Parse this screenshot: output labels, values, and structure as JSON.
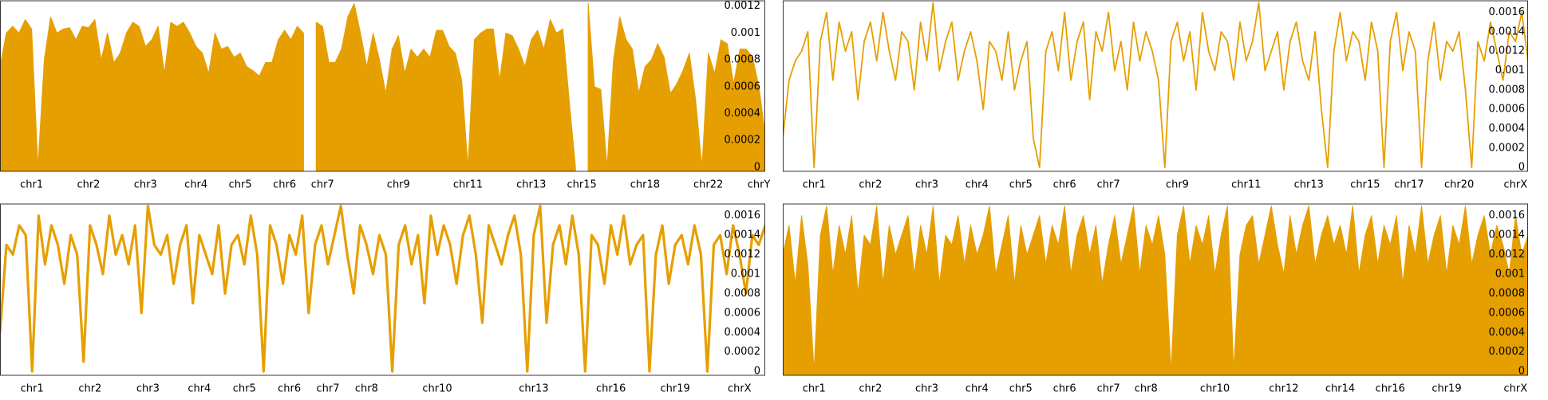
{
  "chart_data": [
    {
      "type": "area",
      "color": "#e69f00",
      "values": [
        0.00075,
        0.001,
        0.00105,
        0.001,
        0.0011,
        0.00103,
        0,
        0.0008,
        0.00112,
        0.001,
        0.00103,
        0.00104,
        0.00095,
        0.00105,
        0.00104,
        0.0011,
        0.0008,
        0.001,
        0.00078,
        0.00085,
        0.001,
        0.00108,
        0.00105,
        0.0009,
        0.00095,
        0.00105,
        0.0007,
        0.00108,
        0.00105,
        0.00108,
        0.001,
        0.0009,
        0.00085,
        0.0007,
        0.001,
        0.00088,
        0.0009,
        0.00082,
        0.00085,
        0.00075,
        0.00072,
        0.00068,
        0.00078,
        0.00078,
        0.00095,
        0.00102,
        0.00095,
        0.00105,
        0.001,
        null,
        0.00108,
        0.00105,
        0.00078,
        0.00078,
        0.00088,
        0.00112,
        0.00122,
        0.001,
        0.00075,
        0.001,
        0.0008,
        0.00055,
        0.00088,
        0.00098,
        0.0007,
        0.00088,
        0.00082,
        0.00088,
        0.00082,
        0.00102,
        0.00102,
        0.0009,
        0.00085,
        0.00065,
        0,
        0.00095,
        0.001,
        0.00103,
        0.00103,
        0.00065,
        0.001,
        0.00098,
        0.00088,
        0.00075,
        0.00095,
        0.00102,
        0.00088,
        0.0011,
        0.001,
        0.00103,
        0.0005,
        0,
        null,
        0.00122,
        0.0006,
        0.00058,
        0,
        0.0008,
        0.00112,
        0.00095,
        0.00088,
        0.00055,
        0.00075,
        0.0008,
        0.00092,
        0.00082,
        0.00055,
        0.00062,
        0.00072,
        0.00085,
        0.0005,
        0,
        0.00085,
        0.0007,
        0.00095,
        0.00092,
        0.00062,
        0.00088,
        0.00088,
        0.00082,
        0.0006,
        0.00025
      ],
      "xlim": [
        0,
        121
      ],
      "ylim": [
        -3e-05,
        0.00124
      ],
      "yticks": [
        0,
        0.0002,
        0.0004,
        0.0006,
        0.0008,
        0.001,
        0.0012
      ],
      "xticks": [
        {
          "value": 5,
          "label": "chr1"
        },
        {
          "value": 14,
          "label": "chr2"
        },
        {
          "value": 23,
          "label": "chr3"
        },
        {
          "value": 31,
          "label": "chr4"
        },
        {
          "value": 38,
          "label": "chr5"
        },
        {
          "value": 45,
          "label": "chr6"
        },
        {
          "value": 51,
          "label": "chr7"
        },
        {
          "value": 63,
          "label": "chr9"
        },
        {
          "value": 74,
          "label": "chr11"
        },
        {
          "value": 84,
          "label": "chr13"
        },
        {
          "value": 92,
          "label": "chr15"
        },
        {
          "value": 102,
          "label": "chr18"
        },
        {
          "value": 112,
          "label": "chr22"
        },
        {
          "value": 120,
          "label": "chrY"
        }
      ]
    },
    {
      "type": "line",
      "color": "#e69f00",
      "values": [
        0.0003,
        0.0009,
        0.0011,
        0.0012,
        0.0014,
        0,
        0.0013,
        0.0016,
        0.0009,
        0.0015,
        0.0012,
        0.0014,
        0.0007,
        0.0013,
        0.0015,
        0.0011,
        0.0016,
        0.0012,
        0.0009,
        0.0014,
        0.0013,
        0.0008,
        0.0015,
        0.0011,
        0.0017,
        0.001,
        0.0013,
        0.0015,
        0.0009,
        0.0012,
        0.0014,
        0.0011,
        0.0006,
        0.0013,
        0.0012,
        0.0009,
        0.0014,
        0.0008,
        0.0011,
        0.0013,
        0.0003,
        0,
        0.0012,
        0.0014,
        0.001,
        0.0016,
        0.0009,
        0.0013,
        0.0015,
        0.0007,
        0.0014,
        0.0012,
        0.0016,
        0.001,
        0.0013,
        0.0008,
        0.0015,
        0.0011,
        0.0014,
        0.0012,
        0.0009,
        0,
        0.0013,
        0.0015,
        0.0011,
        0.0014,
        0.0008,
        0.0016,
        0.0012,
        0.001,
        0.0014,
        0.0013,
        0.0009,
        0.0015,
        0.0011,
        0.0013,
        0.0017,
        0.001,
        0.0012,
        0.0014,
        0.0008,
        0.0013,
        0.0015,
        0.0011,
        0.0009,
        0.0014,
        0.0006,
        0,
        0.0012,
        0.0016,
        0.0011,
        0.0014,
        0.0013,
        0.0009,
        0.0015,
        0.0012,
        0,
        0.0013,
        0.0016,
        0.001,
        0.0014,
        0.0012,
        0,
        0.0011,
        0.0015,
        0.0009,
        0.0013,
        0.0012,
        0.0014,
        0.0008,
        0,
        0.0013,
        0.0011,
        0.0015,
        0.0012,
        0.0009,
        0.0014,
        0.0013,
        0.0016,
        0.0011
      ],
      "xlim": [
        0,
        119
      ],
      "ylim": [
        -4e-05,
        0.00172
      ],
      "yticks": [
        0,
        0.0002,
        0.0004,
        0.0006,
        0.0008,
        0.001,
        0.0012,
        0.0014,
        0.0016
      ],
      "xticks": [
        {
          "value": 5,
          "label": "chr1"
        },
        {
          "value": 14,
          "label": "chr2"
        },
        {
          "value": 23,
          "label": "chr3"
        },
        {
          "value": 31,
          "label": "chr4"
        },
        {
          "value": 38,
          "label": "chr5"
        },
        {
          "value": 45,
          "label": "chr6"
        },
        {
          "value": 52,
          "label": "chr7"
        },
        {
          "value": 63,
          "label": "chr9"
        },
        {
          "value": 74,
          "label": "chr11"
        },
        {
          "value": 84,
          "label": "chr13"
        },
        {
          "value": 93,
          "label": "chr15"
        },
        {
          "value": 100,
          "label": "chr17"
        },
        {
          "value": 108,
          "label": "chr20"
        },
        {
          "value": 117,
          "label": "chrX"
        }
      ]
    },
    {
      "type": "line",
      "color": "#e69f00",
      "values": [
        0.0004,
        0.0013,
        0.0012,
        0.0015,
        0.0014,
        0,
        0.0016,
        0.0011,
        0.0015,
        0.0013,
        0.0009,
        0.0014,
        0.0012,
        0.0001,
        0.0015,
        0.0013,
        0.001,
        0.0016,
        0.0012,
        0.0014,
        0.0011,
        0.0015,
        0.0006,
        0.0017,
        0.0013,
        0.0012,
        0.0014,
        0.0009,
        0.0013,
        0.0015,
        0.0007,
        0.0014,
        0.0012,
        0.001,
        0.0015,
        0.0008,
        0.0013,
        0.0014,
        0.0011,
        0.0016,
        0.0012,
        0,
        0.0015,
        0.0013,
        0.0009,
        0.0014,
        0.0012,
        0.0016,
        0.0006,
        0.0013,
        0.0015,
        0.0011,
        0.0014,
        0.0017,
        0.0012,
        0.0008,
        0.0015,
        0.0013,
        0.001,
        0.0014,
        0.0012,
        0,
        0.0013,
        0.0015,
        0.0011,
        0.0014,
        0.0007,
        0.0016,
        0.0012,
        0.0015,
        0.0013,
        0.0009,
        0.0014,
        0.0016,
        0.0012,
        0.0005,
        0.0015,
        0.0013,
        0.0011,
        0.0014,
        0.0016,
        0.0012,
        0,
        0.0014,
        0.0017,
        0.0005,
        0.0013,
        0.0015,
        0.0011,
        0.0016,
        0.0012,
        0,
        0.0014,
        0.0013,
        0.0009,
        0.0015,
        0.0012,
        0.0016,
        0.0011,
        0.0013,
        0.0014,
        0,
        0.0012,
        0.0015,
        0.0009,
        0.0013,
        0.0014,
        0.0011,
        0.0015,
        0.0012,
        0,
        0.0013,
        0.0014,
        0.001,
        0.0015,
        0.0012,
        0.0008,
        0.0014,
        0.0013,
        0.0015
      ],
      "xlim": [
        0,
        119
      ],
      "ylim": [
        -4e-05,
        0.00172
      ],
      "yticks": [
        0,
        0.0002,
        0.0004,
        0.0006,
        0.0008,
        0.001,
        0.0012,
        0.0014,
        0.0016
      ],
      "xticks": [
        {
          "value": 5,
          "label": "chr1"
        },
        {
          "value": 14,
          "label": "chr2"
        },
        {
          "value": 23,
          "label": "chr3"
        },
        {
          "value": 31,
          "label": "chr4"
        },
        {
          "value": 38,
          "label": "chr5"
        },
        {
          "value": 45,
          "label": "chr6"
        },
        {
          "value": 51,
          "label": "chr7"
        },
        {
          "value": 57,
          "label": "chr8"
        },
        {
          "value": 68,
          "label": "chr10"
        },
        {
          "value": 83,
          "label": "chr13"
        },
        {
          "value": 95,
          "label": "chr16"
        },
        {
          "value": 105,
          "label": "chr19"
        },
        {
          "value": 115,
          "label": "chrX"
        }
      ]
    },
    {
      "type": "area",
      "color": "#e69f00",
      "values": [
        0.0012,
        0.0015,
        0.0009,
        0.0016,
        0.0011,
        0,
        0.0014,
        0.0017,
        0.001,
        0.0015,
        0.0012,
        0.0016,
        0.0008,
        0.0014,
        0.0013,
        0.0017,
        0.0009,
        0.0015,
        0.0012,
        0.0014,
        0.0016,
        0.001,
        0.0015,
        0.0012,
        0.0017,
        0.0009,
        0.0014,
        0.0013,
        0.0016,
        0.0011,
        0.0015,
        0.0012,
        0.0014,
        0.0017,
        0.001,
        0.0013,
        0.0016,
        0.0009,
        0.0015,
        0.0012,
        0.0014,
        0.0016,
        0.0011,
        0.0015,
        0.0013,
        0.0017,
        0.001,
        0.0014,
        0.0016,
        0.0012,
        0.0015,
        0.0009,
        0.0013,
        0.0016,
        0.0011,
        0.0014,
        0.0017,
        0.001,
        0.0015,
        0.0013,
        0.0016,
        0.0012,
        0,
        0.0014,
        0.0017,
        0.0011,
        0.0015,
        0.0013,
        0.0016,
        0.001,
        0.0014,
        0.0017,
        0,
        0.0012,
        0.0015,
        0.0016,
        0.0011,
        0.0014,
        0.0017,
        0.0013,
        0.001,
        0.0016,
        0.0012,
        0.0015,
        0.0017,
        0.0011,
        0.0014,
        0.0016,
        0.0013,
        0.0015,
        0.0012,
        0.0017,
        0.001,
        0.0014,
        0.0016,
        0.0011,
        0.0015,
        0.0013,
        0.0016,
        0.0009,
        0.0015,
        0.0012,
        0.0017,
        0.0011,
        0.0014,
        0.0016,
        0.001,
        0.0015,
        0.0013,
        0.0017,
        0.0011,
        0.0014,
        0.0016,
        0.0012,
        0.0015,
        0.0013,
        0.001,
        0.0016,
        0.0012,
        0.0014
      ],
      "xlim": [
        0,
        119
      ],
      "ylim": [
        -4e-05,
        0.00172
      ],
      "yticks": [
        0,
        0.0002,
        0.0004,
        0.0006,
        0.0008,
        0.001,
        0.0012,
        0.0014,
        0.0016
      ],
      "xticks": [
        {
          "value": 5,
          "label": "chr1"
        },
        {
          "value": 14,
          "label": "chr2"
        },
        {
          "value": 23,
          "label": "chr3"
        },
        {
          "value": 31,
          "label": "chr4"
        },
        {
          "value": 38,
          "label": "chr5"
        },
        {
          "value": 45,
          "label": "chr6"
        },
        {
          "value": 52,
          "label": "chr7"
        },
        {
          "value": 58,
          "label": "chr8"
        },
        {
          "value": 69,
          "label": "chr10"
        },
        {
          "value": 80,
          "label": "chr12"
        },
        {
          "value": 89,
          "label": "chr14"
        },
        {
          "value": 97,
          "label": "chr16"
        },
        {
          "value": 106,
          "label": "chr19"
        },
        {
          "value": 117,
          "label": "chrX"
        }
      ]
    }
  ]
}
